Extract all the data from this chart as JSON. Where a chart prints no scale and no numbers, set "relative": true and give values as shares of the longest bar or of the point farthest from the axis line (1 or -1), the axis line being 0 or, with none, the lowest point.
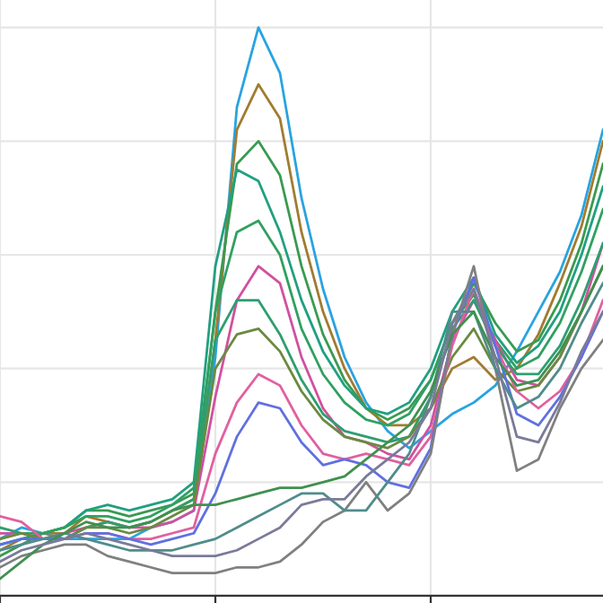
{
  "chart_data": {
    "type": "line",
    "relative": true,
    "grid": true,
    "marker": "none",
    "line_style": "solid",
    "categories": [
      null,
      null,
      null,
      null,
      null,
      null,
      null,
      null,
      null,
      null,
      null,
      null,
      null,
      null,
      null,
      null,
      null,
      null,
      null,
      null,
      null,
      null,
      null,
      null,
      null,
      null,
      null,
      null,
      null
    ],
    "series": [
      {
        "color": "#29a3e0",
        "values": [
          0.1,
          0.12,
          0.11,
          0.1,
          0.1,
          0.1,
          0.1,
          0.12,
          0.13,
          0.15,
          0.42,
          0.86,
          1.0,
          0.92,
          0.7,
          0.54,
          0.42,
          0.34,
          0.29,
          0.26,
          0.29,
          0.32,
          0.34,
          0.37,
          0.43,
          0.5,
          0.57,
          0.67,
          0.82
        ]
      },
      {
        "color": "#a07c30",
        "values": [
          0.08,
          0.1,
          0.11,
          0.11,
          0.14,
          0.13,
          0.12,
          0.13,
          0.15,
          0.17,
          0.45,
          0.82,
          0.9,
          0.84,
          0.64,
          0.5,
          0.4,
          0.33,
          0.3,
          0.3,
          0.33,
          0.4,
          0.42,
          0.38,
          0.4,
          0.46,
          0.55,
          0.65,
          0.8
        ]
      },
      {
        "color": "#3a9a50",
        "values": [
          0.07,
          0.09,
          0.11,
          0.12,
          0.15,
          0.15,
          0.14,
          0.15,
          0.16,
          0.18,
          0.5,
          0.76,
          0.8,
          0.74,
          0.58,
          0.46,
          0.38,
          0.33,
          0.31,
          0.33,
          0.38,
          0.48,
          0.55,
          0.48,
          0.43,
          0.45,
          0.52,
          0.62,
          0.76
        ]
      },
      {
        "color": "#20a080",
        "values": [
          0.09,
          0.1,
          0.11,
          0.12,
          0.15,
          0.16,
          0.15,
          0.16,
          0.17,
          0.2,
          0.58,
          0.75,
          0.73,
          0.64,
          0.52,
          0.43,
          0.37,
          0.33,
          0.32,
          0.34,
          0.4,
          0.5,
          0.56,
          0.46,
          0.41,
          0.44,
          0.5,
          0.6,
          0.72
        ]
      },
      {
        "color": "#30a060",
        "values": [
          0.1,
          0.11,
          0.11,
          0.12,
          0.14,
          0.14,
          0.13,
          0.14,
          0.16,
          0.19,
          0.5,
          0.64,
          0.66,
          0.6,
          0.47,
          0.39,
          0.34,
          0.31,
          0.3,
          0.32,
          0.38,
          0.48,
          0.53,
          0.45,
          0.4,
          0.42,
          0.48,
          0.57,
          0.68
        ]
      },
      {
        "color": "#d050a0",
        "values": [
          0.11,
          0.11,
          0.1,
          0.11,
          0.12,
          0.13,
          0.12,
          0.12,
          0.13,
          0.15,
          0.35,
          0.52,
          0.58,
          0.55,
          0.42,
          0.33,
          0.28,
          0.27,
          0.25,
          0.24,
          0.3,
          0.45,
          0.52,
          0.45,
          0.38,
          0.37,
          0.42,
          0.5,
          0.62
        ]
      },
      {
        "color": "#2e9e70",
        "values": [
          0.12,
          0.11,
          0.1,
          0.1,
          0.12,
          0.13,
          0.12,
          0.13,
          0.15,
          0.17,
          0.45,
          0.52,
          0.52,
          0.46,
          0.38,
          0.32,
          0.29,
          0.28,
          0.27,
          0.28,
          0.35,
          0.47,
          0.52,
          0.44,
          0.39,
          0.39,
          0.44,
          0.52,
          0.62
        ]
      },
      {
        "color": "#6a8a40",
        "values": [
          0.1,
          0.11,
          0.1,
          0.1,
          0.12,
          0.12,
          0.11,
          0.12,
          0.14,
          0.16,
          0.4,
          0.46,
          0.47,
          0.43,
          0.36,
          0.31,
          0.28,
          0.27,
          0.26,
          0.28,
          0.33,
          0.42,
          0.47,
          0.4,
          0.36,
          0.37,
          0.42,
          0.5,
          0.58
        ]
      },
      {
        "color": "#e060a0",
        "values": [
          0.14,
          0.13,
          0.1,
          0.1,
          0.11,
          0.11,
          0.1,
          0.1,
          0.11,
          0.12,
          0.25,
          0.34,
          0.39,
          0.37,
          0.3,
          0.25,
          0.24,
          0.25,
          0.24,
          0.23,
          0.28,
          0.44,
          0.54,
          0.44,
          0.36,
          0.33,
          0.36,
          0.42,
          0.52
        ]
      },
      {
        "color": "#6070e0",
        "values": [
          0.09,
          0.1,
          0.1,
          0.1,
          0.11,
          0.11,
          0.1,
          0.09,
          0.1,
          0.11,
          0.18,
          0.28,
          0.34,
          0.33,
          0.27,
          0.23,
          0.24,
          0.23,
          0.2,
          0.19,
          0.26,
          0.46,
          0.56,
          0.44,
          0.32,
          0.3,
          0.35,
          0.42,
          0.5
        ]
      },
      {
        "color": "#808080",
        "values": [
          0.05,
          0.07,
          0.08,
          0.09,
          0.09,
          0.07,
          0.06,
          0.05,
          0.04,
          0.04,
          0.04,
          0.05,
          0.05,
          0.06,
          0.09,
          0.13,
          0.15,
          0.2,
          0.15,
          0.18,
          0.25,
          0.46,
          0.58,
          0.4,
          0.22,
          0.24,
          0.33,
          0.4,
          0.45
        ]
      },
      {
        "color": "#508c8c",
        "values": [
          0.08,
          0.09,
          0.1,
          0.11,
          0.1,
          0.09,
          0.08,
          0.08,
          0.08,
          0.09,
          0.1,
          0.12,
          0.14,
          0.16,
          0.18,
          0.18,
          0.15,
          0.15,
          0.2,
          0.25,
          0.35,
          0.5,
          0.5,
          0.4,
          0.33,
          0.35,
          0.4,
          0.48,
          0.55
        ]
      },
      {
        "color": "#409050",
        "values": [
          0.03,
          0.06,
          0.09,
          0.11,
          0.13,
          0.12,
          0.12,
          0.13,
          0.15,
          0.16,
          0.16,
          0.17,
          0.18,
          0.19,
          0.19,
          0.2,
          0.21,
          0.24,
          0.27,
          0.3,
          0.36,
          0.46,
          0.5,
          0.42,
          0.37,
          0.38,
          0.43,
          0.5,
          0.58
        ]
      },
      {
        "color": "#7a7a9a",
        "values": [
          0.06,
          0.08,
          0.09,
          0.1,
          0.11,
          0.1,
          0.09,
          0.08,
          0.07,
          0.07,
          0.07,
          0.08,
          0.1,
          0.12,
          0.16,
          0.17,
          0.17,
          0.21,
          0.24,
          0.27,
          0.33,
          0.48,
          0.54,
          0.42,
          0.28,
          0.27,
          0.34,
          0.43,
          0.5
        ]
      }
    ]
  }
}
